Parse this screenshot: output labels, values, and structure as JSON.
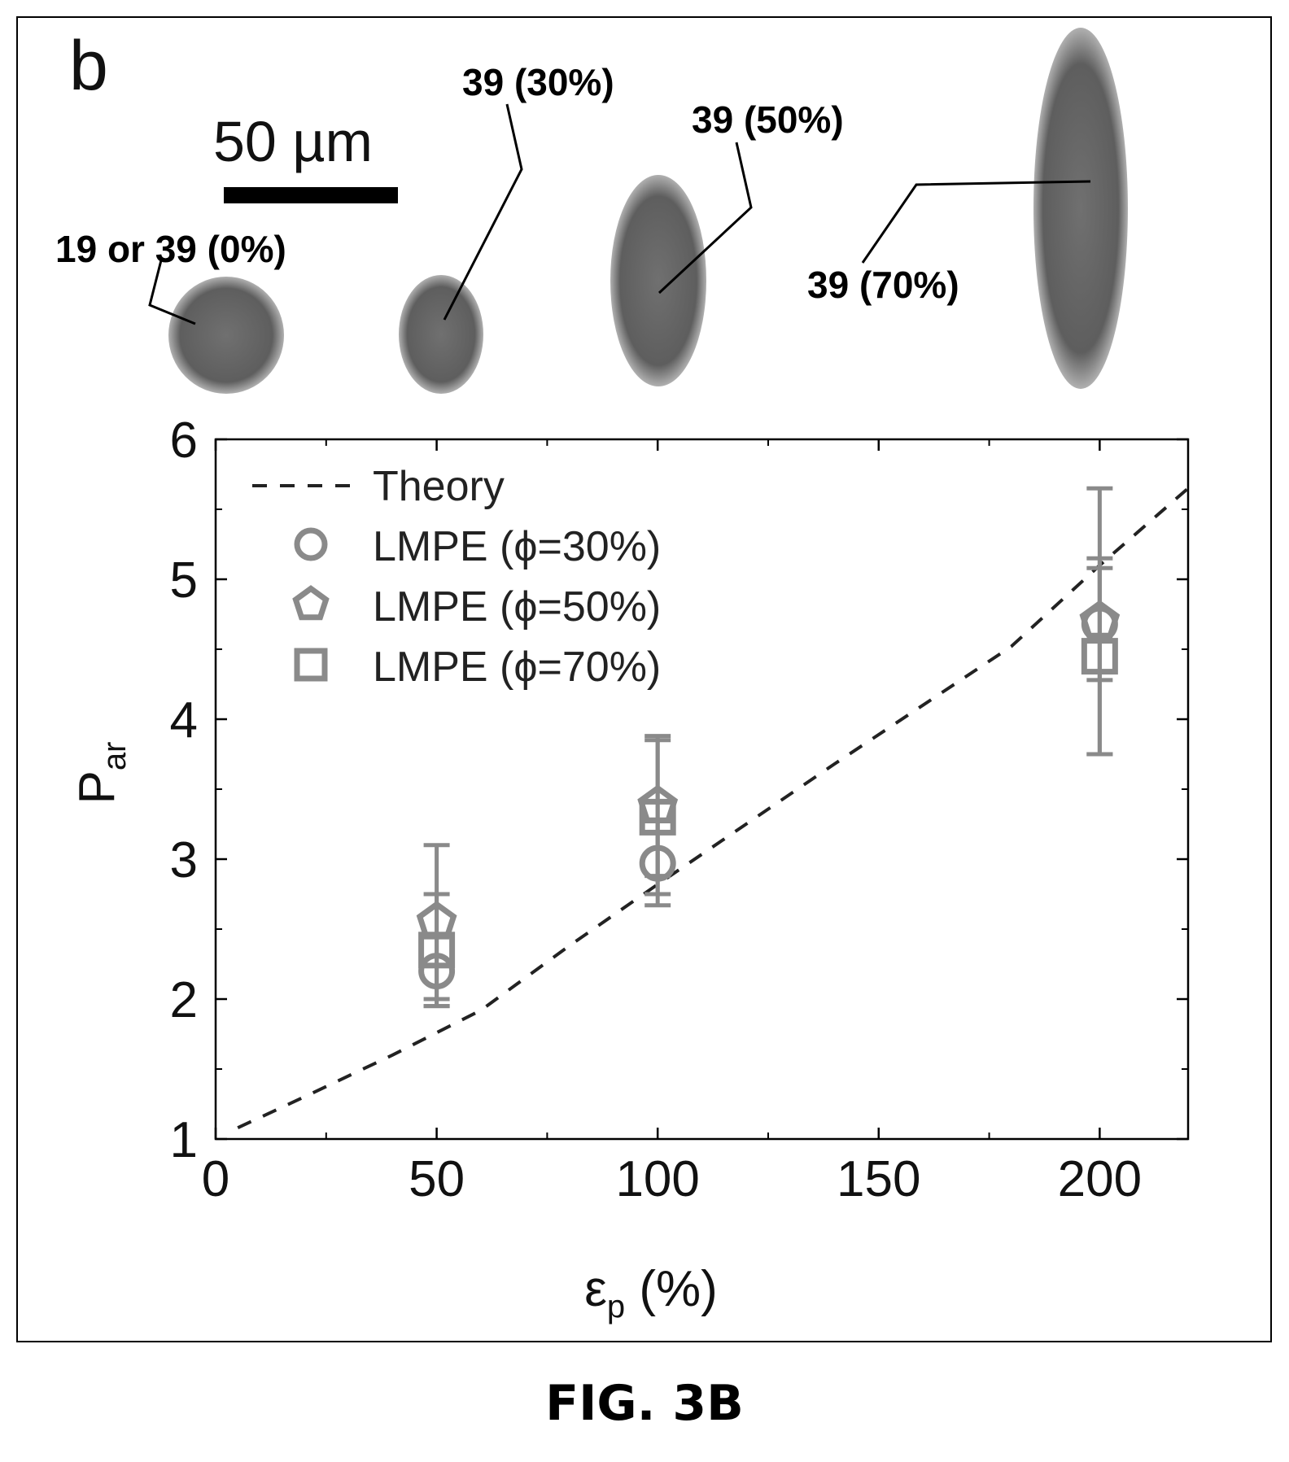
{
  "panel_label": "b",
  "scale_bar_label": "50 µm",
  "particle_labels": [
    "19 or 39 (0%)",
    "39 (30%)",
    "39 (50%)",
    "39 (70%)"
  ],
  "figure_caption": "FIG. 3B",
  "colors": {
    "marker": "#8a8a8a",
    "theory": "#222222",
    "particle": "#6b6b6b"
  },
  "chart_data": {
    "type": "scatter",
    "xlabel": "εp (%)",
    "ylabel": "Par",
    "xlim": [
      0,
      220
    ],
    "ylim": [
      1,
      6
    ],
    "xticks": [
      0,
      50,
      100,
      150,
      200
    ],
    "yticks": [
      1,
      2,
      3,
      4,
      5,
      6
    ],
    "legend_position": "top-left",
    "grid": false,
    "series": [
      {
        "name": "Theory",
        "style": "dashed-line",
        "x": [
          5,
          20,
          40,
          60,
          80,
          100,
          120,
          140,
          160,
          180,
          200,
          220
        ],
        "y": [
          1.08,
          1.3,
          1.6,
          1.92,
          2.38,
          2.82,
          3.25,
          3.68,
          4.1,
          4.52,
          5.1,
          5.65
        ]
      },
      {
        "name": "LMPE (ϕ=30%)",
        "marker": "circle",
        "x": [
          50,
          100,
          200
        ],
        "y": [
          2.2,
          2.97,
          4.68
        ],
        "err": [
          0.25,
          0.3,
          0.4
        ]
      },
      {
        "name": "LMPE (ϕ=50%)",
        "marker": "pentagon",
        "x": [
          50,
          100,
          200
        ],
        "y": [
          2.55,
          3.38,
          4.7
        ],
        "err": [
          0.55,
          0.5,
          0.95
        ]
      },
      {
        "name": "LMPE (ϕ=70%)",
        "marker": "square",
        "x": [
          50,
          100,
          200
        ],
        "y": [
          2.35,
          3.3,
          4.45
        ],
        "err": [
          0.4,
          0.55,
          0.7
        ]
      }
    ]
  }
}
